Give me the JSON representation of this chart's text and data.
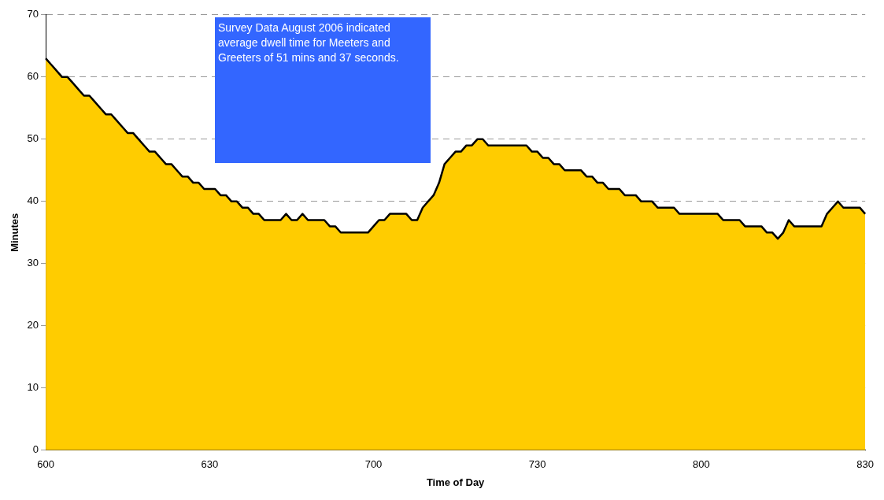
{
  "chart_data": {
    "type": "area",
    "xlabel": "Time of Day",
    "ylabel": "Minutes",
    "annotations": [
      "Survey Data August 2006 indicated average dwell time for Meeters and Greeters of 51 mins and 37 seconds."
    ],
    "categories": [
      "600",
      null,
      null,
      null,
      null,
      null,
      null,
      null,
      null,
      null,
      null,
      null,
      null,
      null,
      null,
      null,
      null,
      null,
      null,
      null,
      null,
      null,
      null,
      null,
      null,
      null,
      null,
      null,
      null,
      null,
      "630",
      null,
      null,
      null,
      null,
      null,
      null,
      null,
      null,
      null,
      null,
      null,
      null,
      null,
      null,
      null,
      null,
      null,
      null,
      null,
      null,
      null,
      null,
      null,
      null,
      null,
      null,
      null,
      null,
      null,
      "700",
      null,
      null,
      null,
      null,
      null,
      null,
      null,
      null,
      null,
      null,
      null,
      null,
      null,
      null,
      null,
      null,
      null,
      null,
      null,
      null,
      null,
      null,
      null,
      null,
      null,
      null,
      null,
      null,
      null,
      "730",
      null,
      null,
      null,
      null,
      null,
      null,
      null,
      null,
      null,
      null,
      null,
      null,
      null,
      null,
      null,
      null,
      null,
      null,
      null,
      null,
      null,
      null,
      null,
      null,
      null,
      null,
      null,
      null,
      null,
      "800",
      null,
      null,
      null,
      null,
      null,
      null,
      null,
      null,
      null,
      null,
      null,
      null,
      null,
      null,
      null,
      null,
      null,
      null,
      null,
      null,
      null,
      null,
      null,
      null,
      null,
      null,
      null,
      null,
      null,
      "830"
    ],
    "ylim": [
      0,
      70
    ],
    "yticks": [
      0,
      10,
      20,
      30,
      40,
      50,
      60,
      70
    ],
    "grid": "y",
    "legend": false,
    "marker": "none",
    "line_style": "solid",
    "series": [
      {
        "color": "#ffcc00",
        "values": [
          63,
          62,
          61,
          60,
          60,
          59,
          58,
          57,
          57,
          56,
          55,
          54,
          54,
          53,
          52,
          51,
          51,
          50,
          49,
          48,
          48,
          47,
          46,
          46,
          45,
          44,
          44,
          43,
          43,
          42,
          42,
          42,
          41,
          41,
          40,
          40,
          39,
          39,
          38,
          38,
          37,
          37,
          37,
          37,
          38,
          37,
          37,
          38,
          37,
          37,
          37,
          37,
          36,
          36,
          35,
          35,
          35,
          35,
          35,
          35,
          36,
          37,
          37,
          38,
          38,
          38,
          38,
          37,
          37,
          39,
          40,
          41,
          43,
          46,
          47,
          48,
          48,
          49,
          49,
          50,
          50,
          49,
          49,
          49,
          49,
          49,
          49,
          49,
          49,
          48,
          48,
          47,
          47,
          46,
          46,
          45,
          45,
          45,
          45,
          44,
          44,
          43,
          43,
          42,
          42,
          42,
          41,
          41,
          41,
          40,
          40,
          40,
          39,
          39,
          39,
          39,
          38,
          38,
          38,
          38,
          38,
          38,
          38,
          38,
          37,
          37,
          37,
          37,
          36,
          36,
          36,
          36,
          35,
          35,
          34,
          35,
          37,
          36,
          36,
          36,
          36,
          36,
          36,
          38,
          39,
          40,
          39,
          39,
          39,
          39,
          38
        ]
      }
    ]
  }
}
